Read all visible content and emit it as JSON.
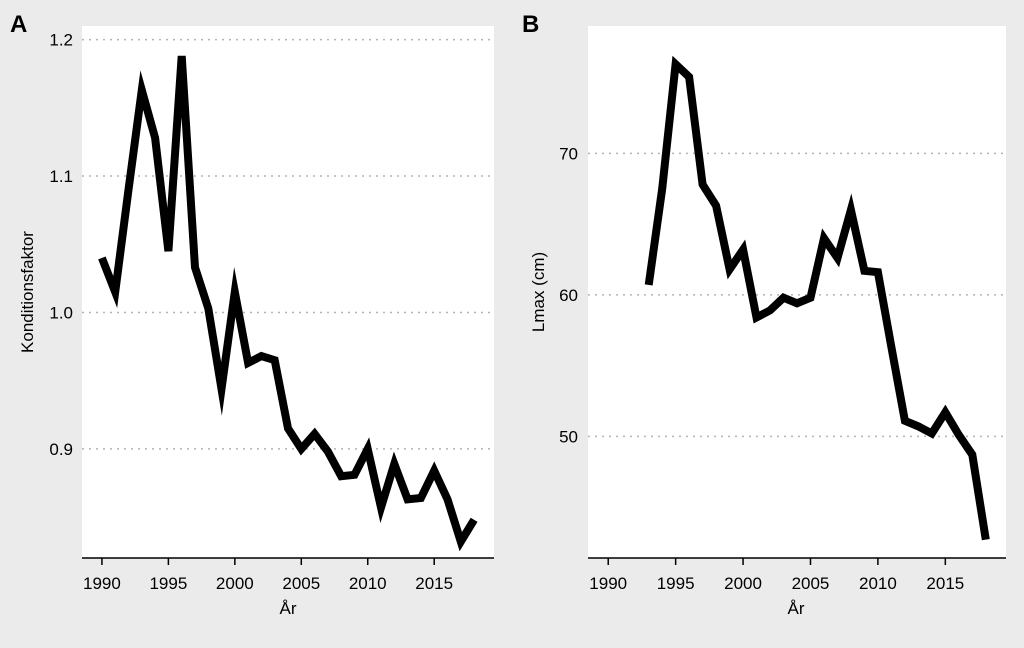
{
  "chart_data": [
    {
      "panel": "A",
      "type": "line",
      "xlabel": "År",
      "ylabel": "Konditionsfaktor",
      "xlim": [
        1988.5,
        2019.5
      ],
      "ylim": [
        0.82,
        1.21
      ],
      "xticks": [
        "1990",
        "1995",
        "2000",
        "2005",
        "2010",
        "2015"
      ],
      "yticks": [
        "0.9",
        "1.0",
        "1.1",
        "1.2"
      ],
      "grid": "horizontal dotted",
      "series": [
        {
          "x": [
            1990,
            1991,
            1992,
            1993,
            1994,
            1995,
            1996,
            1997,
            1998,
            1999,
            2000,
            2001,
            2002,
            2003,
            2004,
            2005,
            2006,
            2007,
            2008,
            2009,
            2010,
            2011,
            2012,
            2013,
            2014,
            2015,
            2016,
            2017,
            2018
          ],
          "values": [
            1.04,
            1.015,
            1.09,
            1.163,
            1.128,
            1.045,
            1.188,
            1.033,
            1.003,
            0.944,
            1.015,
            0.963,
            0.968,
            0.965,
            0.915,
            0.9,
            0.911,
            0.898,
            0.88,
            0.881,
            0.9,
            0.857,
            0.889,
            0.863,
            0.864,
            0.884,
            0.863,
            0.832,
            0.848
          ]
        }
      ]
    },
    {
      "panel": "B",
      "type": "line",
      "xlabel": "År",
      "ylabel": "Lmax (cm)",
      "xlim": [
        1988.5,
        2019.5
      ],
      "ylim": [
        41.4,
        79.0
      ],
      "xticks": [
        "1990",
        "1995",
        "2000",
        "2005",
        "2010",
        "2015"
      ],
      "yticks": [
        "50",
        "60",
        "70"
      ],
      "grid": "horizontal dotted",
      "series": [
        {
          "x": [
            1993,
            1994,
            1995,
            1996,
            1997,
            1998,
            1999,
            2000,
            2001,
            2002,
            2003,
            2004,
            2005,
            2006,
            2007,
            2008,
            2009,
            2010,
            2011,
            2012,
            2013,
            2014,
            2015,
            2016,
            2017,
            2018
          ],
          "values": [
            60.7,
            67.5,
            76.3,
            75.4,
            67.8,
            66.3,
            61.8,
            63.2,
            58.4,
            58.9,
            59.8,
            59.4,
            59.8,
            64.0,
            62.6,
            66.0,
            61.7,
            61.6,
            56.3,
            51.1,
            50.7,
            50.2,
            51.7,
            50.1,
            48.7,
            42.7
          ]
        }
      ]
    }
  ]
}
